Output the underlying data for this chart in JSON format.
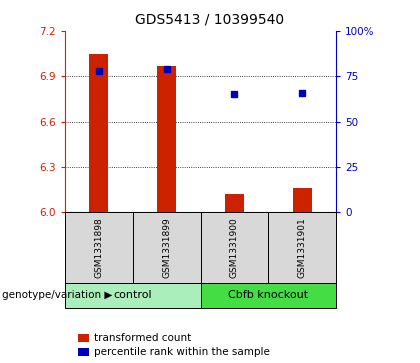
{
  "title": "GDS5413 / 10399540",
  "samples": [
    "GSM1331898",
    "GSM1331899",
    "GSM1331900",
    "GSM1331901"
  ],
  "bar_values": [
    7.05,
    6.97,
    6.12,
    6.16
  ],
  "bar_base": 6.0,
  "percentile_values": [
    78,
    79,
    65,
    66
  ],
  "left_ylim": [
    6.0,
    7.2
  ],
  "right_ylim": [
    0,
    100
  ],
  "left_yticks": [
    6.0,
    6.3,
    6.6,
    6.9,
    7.2
  ],
  "right_yticks": [
    0,
    25,
    50,
    75,
    100
  ],
  "right_yticklabels": [
    "0",
    "25",
    "50",
    "75",
    "100%"
  ],
  "gridlines": [
    6.3,
    6.6,
    6.9
  ],
  "bar_color": "#cc2200",
  "marker_color": "#0000bb",
  "group1_label": "control",
  "group2_label": "Cbfb knockout",
  "group1_color": "#aaeebb",
  "group2_color": "#44dd44",
  "group_label_prefix": "genotype/variation",
  "legend_bar_label": "transformed count",
  "legend_marker_label": "percentile rank within the sample",
  "sample_bg_color": "#d8d8d8",
  "title_fontsize": 10,
  "tick_fontsize": 7.5,
  "sample_fontsize": 6.5,
  "group_fontsize": 8,
  "legend_fontsize": 7.5,
  "label_fontsize": 7.5
}
